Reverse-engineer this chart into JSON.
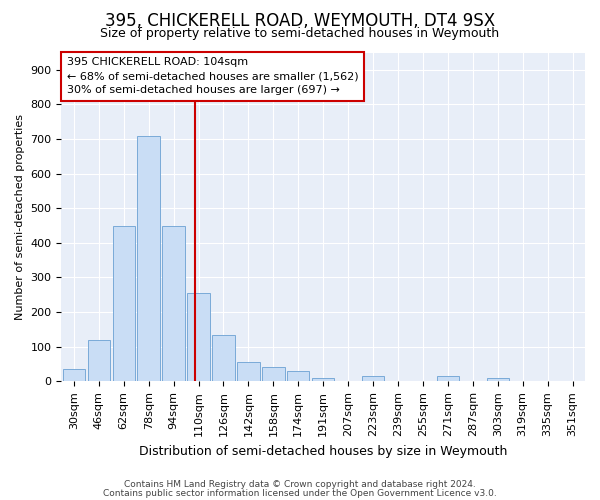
{
  "title1": "395, CHICKERELL ROAD, WEYMOUTH, DT4 9SX",
  "title2": "Size of property relative to semi-detached houses in Weymouth",
  "xlabel": "Distribution of semi-detached houses by size in Weymouth",
  "ylabel": "Number of semi-detached properties",
  "categories": [
    "30sqm",
    "46sqm",
    "62sqm",
    "78sqm",
    "94sqm",
    "110sqm",
    "126sqm",
    "142sqm",
    "158sqm",
    "174sqm",
    "191sqm",
    "207sqm",
    "223sqm",
    "239sqm",
    "255sqm",
    "271sqm",
    "287sqm",
    "303sqm",
    "319sqm",
    "335sqm",
    "351sqm"
  ],
  "values": [
    35,
    120,
    450,
    710,
    450,
    255,
    135,
    55,
    40,
    30,
    10,
    0,
    15,
    0,
    0,
    15,
    0,
    10,
    0,
    0,
    0
  ],
  "bar_color": "#c9ddf5",
  "bar_edge_color": "#7aaad8",
  "subject_line_color": "#cc0000",
  "annotation_line1": "395 CHICKERELL ROAD: 104sqm",
  "annotation_line2": "← 68% of semi-detached houses are smaller (1,562)",
  "annotation_line3": "30% of semi-detached houses are larger (697) →",
  "annotation_box_color": "white",
  "annotation_box_edge": "#cc0000",
  "ylim": [
    0,
    950
  ],
  "yticks": [
    0,
    100,
    200,
    300,
    400,
    500,
    600,
    700,
    800,
    900
  ],
  "footer1": "Contains HM Land Registry data © Crown copyright and database right 2024.",
  "footer2": "Contains public sector information licensed under the Open Government Licence v3.0.",
  "bg_color": "#e8eef8",
  "grid_color": "white",
  "title1_fontsize": 12,
  "title2_fontsize": 9,
  "ylabel_fontsize": 8,
  "xlabel_fontsize": 9,
  "tick_fontsize": 8,
  "footer_fontsize": 6.5
}
